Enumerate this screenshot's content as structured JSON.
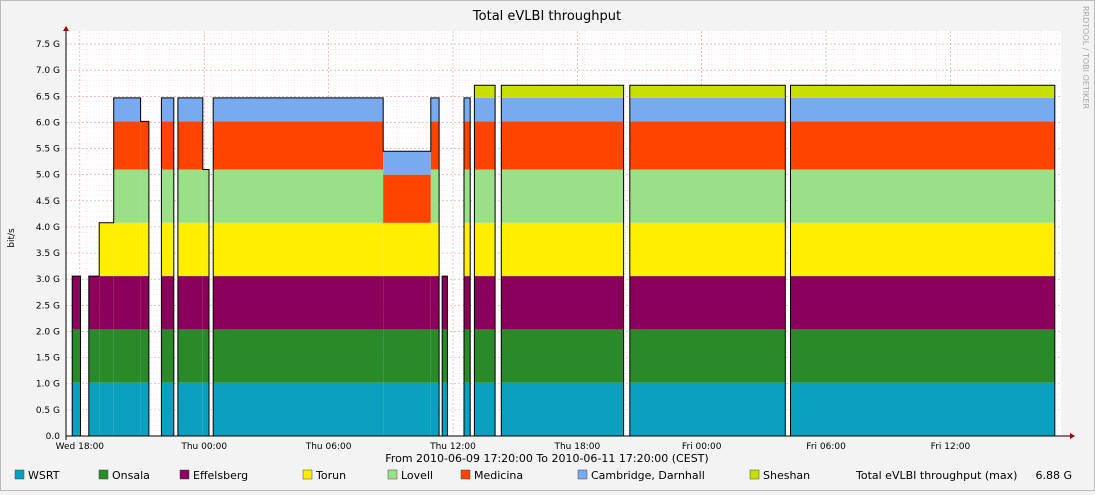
{
  "chart_data": {
    "type": "area",
    "title": "Total eVLBI throughput",
    "ylabel": "bit/s",
    "watermark": "RRDTOOL / TOBI OETIKER",
    "time_range": "From 2010-06-09 17:20:00 To 2010-06-11 17:20:00 (CEST)",
    "x_ticks": [
      "Wed 18:00",
      "Thu 00:00",
      "Thu 06:00",
      "Thu 12:00",
      "Thu 18:00",
      "Fri 00:00",
      "Fri 06:00",
      "Fri 12:00"
    ],
    "x_tick_hours": [
      0.667,
      6.667,
      12.667,
      18.667,
      24.667,
      30.667,
      36.667,
      42.667
    ],
    "x_range_hours": [
      0,
      48
    ],
    "y_ticks": [
      "0.0",
      "0.5 G",
      "1.0 G",
      "1.5 G",
      "2.0 G",
      "2.5 G",
      "3.0 G",
      "3.5 G",
      "4.0 G",
      "4.5 G",
      "5.0 G",
      "5.5 G",
      "6.0 G",
      "6.5 G",
      "7.0 G",
      "7.5 G"
    ],
    "y_tick_values": [
      0,
      0.5,
      1.0,
      1.5,
      2.0,
      2.5,
      3.0,
      3.5,
      4.0,
      4.5,
      5.0,
      5.5,
      6.0,
      6.5,
      7.0,
      7.5
    ],
    "ylim": [
      0,
      7.75
    ],
    "grid": true,
    "legend_position": "bottom",
    "stacked": true,
    "series": [
      {
        "name": "WSRT",
        "color": "#0aa0c0",
        "rate": 1.02
      },
      {
        "name": "Onsala",
        "color": "#2a8a2a",
        "rate": 1.02
      },
      {
        "name": "Effelsberg",
        "color": "#8a005a",
        "rate": 1.02
      },
      {
        "name": "Torun",
        "color": "#ffee00",
        "rate": 1.02
      },
      {
        "name": "Lovell",
        "color": "#99e088",
        "rate": 1.02
      },
      {
        "name": "Medicina",
        "color": "#ff4400",
        "rate": 0.92
      },
      {
        "name": "Cambridge, Darnhall",
        "color": "#77aaee",
        "rate": 0.45
      },
      {
        "name": "Sheshan",
        "color": "#c8e000",
        "rate": 0.24
      }
    ],
    "segments": [
      {
        "t0": 0.0,
        "t1": 0.3,
        "active": []
      },
      {
        "t0": 0.3,
        "t1": 0.7,
        "active": [
          "WSRT",
          "Onsala",
          "Effelsberg"
        ]
      },
      {
        "t0": 0.7,
        "t1": 1.1,
        "active": []
      },
      {
        "t0": 1.1,
        "t1": 1.6,
        "active": [
          "WSRT",
          "Onsala",
          "Effelsberg"
        ]
      },
      {
        "t0": 1.6,
        "t1": 2.3,
        "active": [
          "WSRT",
          "Onsala",
          "Effelsberg",
          "Torun"
        ]
      },
      {
        "t0": 2.3,
        "t1": 3.6,
        "active": [
          "WSRT",
          "Onsala",
          "Effelsberg",
          "Torun",
          "Lovell",
          "Medicina",
          "Cambridge, Darnhall"
        ]
      },
      {
        "t0": 3.6,
        "t1": 4.0,
        "active": [
          "WSRT",
          "Onsala",
          "Effelsberg",
          "Torun",
          "Lovell",
          "Medicina"
        ]
      },
      {
        "t0": 4.0,
        "t1": 4.6,
        "active": []
      },
      {
        "t0": 4.6,
        "t1": 5.2,
        "active": [
          "WSRT",
          "Onsala",
          "Effelsberg",
          "Torun",
          "Lovell",
          "Medicina",
          "Cambridge, Darnhall"
        ]
      },
      {
        "t0": 5.2,
        "t1": 5.4,
        "active": []
      },
      {
        "t0": 5.4,
        "t1": 6.6,
        "active": [
          "WSRT",
          "Onsala",
          "Effelsberg",
          "Torun",
          "Lovell",
          "Medicina",
          "Cambridge, Darnhall"
        ]
      },
      {
        "t0": 6.6,
        "t1": 6.9,
        "active": [
          "WSRT",
          "Onsala",
          "Effelsberg",
          "Torun",
          "Lovell"
        ]
      },
      {
        "t0": 6.9,
        "t1": 7.1,
        "active": []
      },
      {
        "t0": 7.1,
        "t1": 15.3,
        "active": [
          "WSRT",
          "Onsala",
          "Effelsberg",
          "Torun",
          "Lovell",
          "Medicina",
          "Cambridge, Darnhall"
        ]
      },
      {
        "t0": 15.3,
        "t1": 17.6,
        "active": [
          "WSRT",
          "Onsala",
          "Effelsberg",
          "Torun",
          "Medicina",
          "Cambridge, Darnhall"
        ]
      },
      {
        "t0": 17.6,
        "t1": 18.0,
        "active": [
          "WSRT",
          "Onsala",
          "Effelsberg",
          "Torun",
          "Lovell",
          "Medicina",
          "Cambridge, Darnhall"
        ]
      },
      {
        "t0": 18.0,
        "t1": 18.15,
        "active": []
      },
      {
        "t0": 18.15,
        "t1": 18.4,
        "active": [
          "WSRT",
          "Onsala",
          "Effelsberg"
        ]
      },
      {
        "t0": 18.4,
        "t1": 19.2,
        "active": []
      },
      {
        "t0": 19.2,
        "t1": 19.5,
        "active": [
          "WSRT",
          "Onsala",
          "Effelsberg",
          "Torun",
          "Lovell",
          "Medicina",
          "Cambridge, Darnhall"
        ]
      },
      {
        "t0": 19.5,
        "t1": 19.7,
        "active": []
      },
      {
        "t0": 19.7,
        "t1": 20.7,
        "active": [
          "WSRT",
          "Onsala",
          "Effelsberg",
          "Torun",
          "Lovell",
          "Medicina",
          "Cambridge, Darnhall",
          "Sheshan"
        ]
      },
      {
        "t0": 20.7,
        "t1": 21.0,
        "active": []
      },
      {
        "t0": 21.0,
        "t1": 26.9,
        "active": [
          "WSRT",
          "Onsala",
          "Effelsberg",
          "Torun",
          "Lovell",
          "Medicina",
          "Cambridge, Darnhall",
          "Sheshan"
        ]
      },
      {
        "t0": 26.9,
        "t1": 27.2,
        "active": []
      },
      {
        "t0": 27.2,
        "t1": 34.7,
        "active": [
          "WSRT",
          "Onsala",
          "Effelsberg",
          "Torun",
          "Lovell",
          "Medicina",
          "Cambridge, Darnhall",
          "Sheshan"
        ]
      },
      {
        "t0": 34.7,
        "t1": 34.95,
        "active": []
      },
      {
        "t0": 34.95,
        "t1": 47.7,
        "active": [
          "WSRT",
          "Onsala",
          "Effelsberg",
          "Torun",
          "Lovell",
          "Medicina",
          "Cambridge, Darnhall",
          "Sheshan"
        ]
      },
      {
        "t0": 47.7,
        "t1": 48.0,
        "active": []
      }
    ],
    "max_total": {
      "label": "Total eVLBI throughput (max)",
      "value": "6.88 G"
    }
  }
}
